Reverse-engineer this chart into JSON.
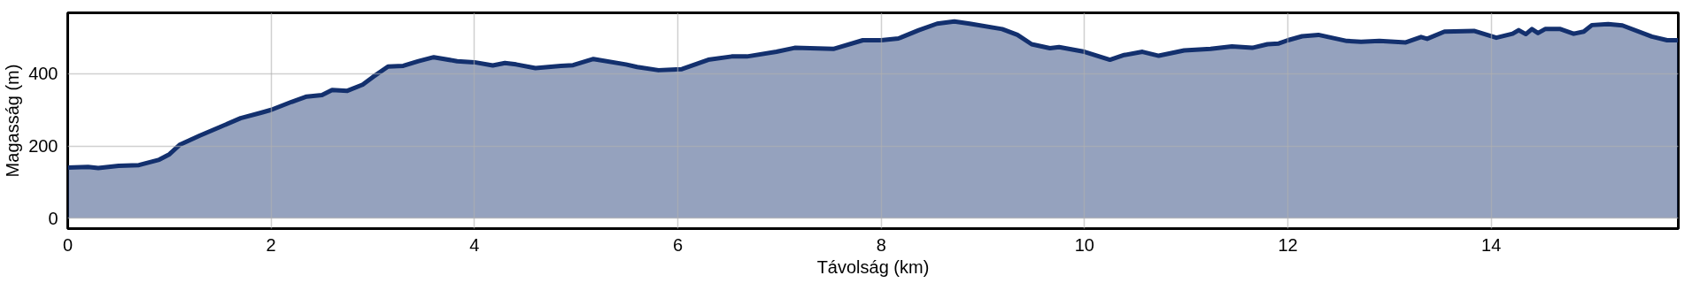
{
  "chart_data": {
    "type": "area",
    "xlabel": "Távolság (km)",
    "ylabel": "Magasság (m)",
    "xlim": [
      0,
      15.84
    ],
    "ylim": [
      -29,
      569
    ],
    "xticks": [
      0,
      2,
      4,
      6,
      8,
      10,
      12,
      14
    ],
    "yticks": [
      0,
      200,
      400
    ],
    "grid": true,
    "series": [
      {
        "color": "#13306e",
        "x": [
          0,
          0.2,
          0.3,
          0.5,
          0.7,
          0.9,
          1.0,
          1.1,
          1.3,
          1.5,
          1.7,
          1.9,
          2.0,
          2.2,
          2.35,
          2.5,
          2.6,
          2.75,
          2.9,
          3.0,
          3.15,
          3.3,
          3.45,
          3.6,
          3.83,
          4.0,
          4.18,
          4.3,
          4.41,
          4.6,
          4.85,
          4.97,
          5.17,
          5.49,
          5.6,
          5.81,
          6.04,
          6.3,
          6.53,
          6.68,
          6.97,
          7.15,
          7.53,
          7.82,
          8.0,
          8.17,
          8.37,
          8.55,
          8.72,
          8.87,
          9.19,
          9.34,
          9.48,
          9.66,
          9.75,
          10.0,
          10.25,
          10.39,
          10.57,
          10.73,
          10.98,
          11.24,
          11.45,
          11.65,
          11.8,
          11.91,
          12.0,
          12.14,
          12.3,
          12.58,
          12.72,
          12.9,
          13.16,
          13.31,
          13.37,
          13.54,
          13.83,
          14.05,
          14.21,
          14.27,
          14.34,
          14.4,
          14.46,
          14.53,
          14.68,
          14.81,
          14.91,
          14.99,
          15.15,
          15.29,
          15.58,
          15.73,
          15.84
        ],
        "values": [
          140,
          142,
          139,
          145,
          147,
          162,
          177,
          203,
          229,
          253,
          277,
          292,
          300,
          322,
          337,
          341,
          355,
          353,
          370,
          391,
          420,
          422,
          435,
          446,
          435,
          432,
          423,
          430,
          426,
          416,
          422,
          424,
          441,
          426,
          419,
          410,
          413,
          439,
          448,
          448,
          461,
          472,
          469,
          493,
          493,
          498,
          521,
          539,
          545,
          539,
          524,
          508,
          482,
          471,
          474,
          461,
          439,
          452,
          461,
          450,
          465,
          469,
          476,
          472,
          482,
          484,
          493,
          504,
          508,
          491,
          489,
          491,
          487,
          502,
          497,
          517,
          519,
          500,
          511,
          521,
          510,
          524,
          513,
          524,
          524,
          511,
          517,
          535,
          538,
          534,
          503,
          493,
          493
        ]
      }
    ]
  }
}
